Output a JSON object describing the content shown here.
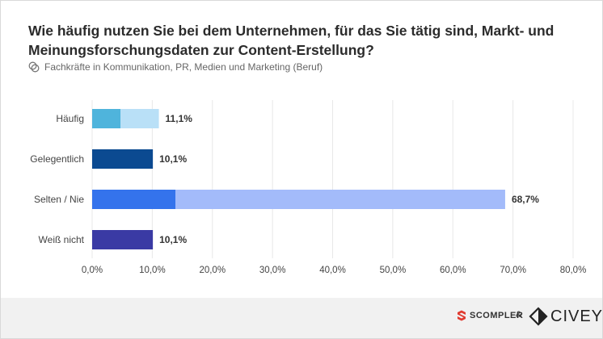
{
  "header": {
    "title": "Wie häufig nutzen Sie bei dem Unternehmen, für das Sie tätig sind, Markt- und Meinungsforschungsdaten zur Content-Erstellung?",
    "subtitle": "Fachkräfte in Kommunikation, PR, Medien und Marketing (Beruf)",
    "subtitle_icon": "target-group-icon"
  },
  "chart_data": {
    "type": "bar",
    "orientation": "horizontal",
    "categories": [
      "Häufig",
      "Gelegentlich",
      "Selten / Nie",
      "Weiß nicht"
    ],
    "values": [
      11.1,
      10.1,
      68.7,
      10.1
    ],
    "value_labels": [
      "11,1%",
      "10,1%",
      "68,7%",
      "10,1%"
    ],
    "xlim": [
      0,
      80
    ],
    "x_ticks": [
      "0,0%",
      "10,0%",
      "20,0%",
      "30,0%",
      "40,0%",
      "50,0%",
      "60,0%",
      "70,0%",
      "80,0%"
    ],
    "grid": true,
    "colors": {
      "Häufig": [
        "#4fb4dc",
        "#b9e0f7"
      ],
      "Gelegentlich": [
        "#0b4a91",
        "#0b4a91"
      ],
      "Selten / Nie": [
        "#3473ec",
        "#a3bbfa"
      ],
      "Weiß nicht": [
        "#3a3aa4",
        "#3a3aa4"
      ]
    }
  },
  "footer": {
    "brand_left": "SCOMPLER",
    "separator": "&",
    "brand_right": "CIVEY"
  }
}
